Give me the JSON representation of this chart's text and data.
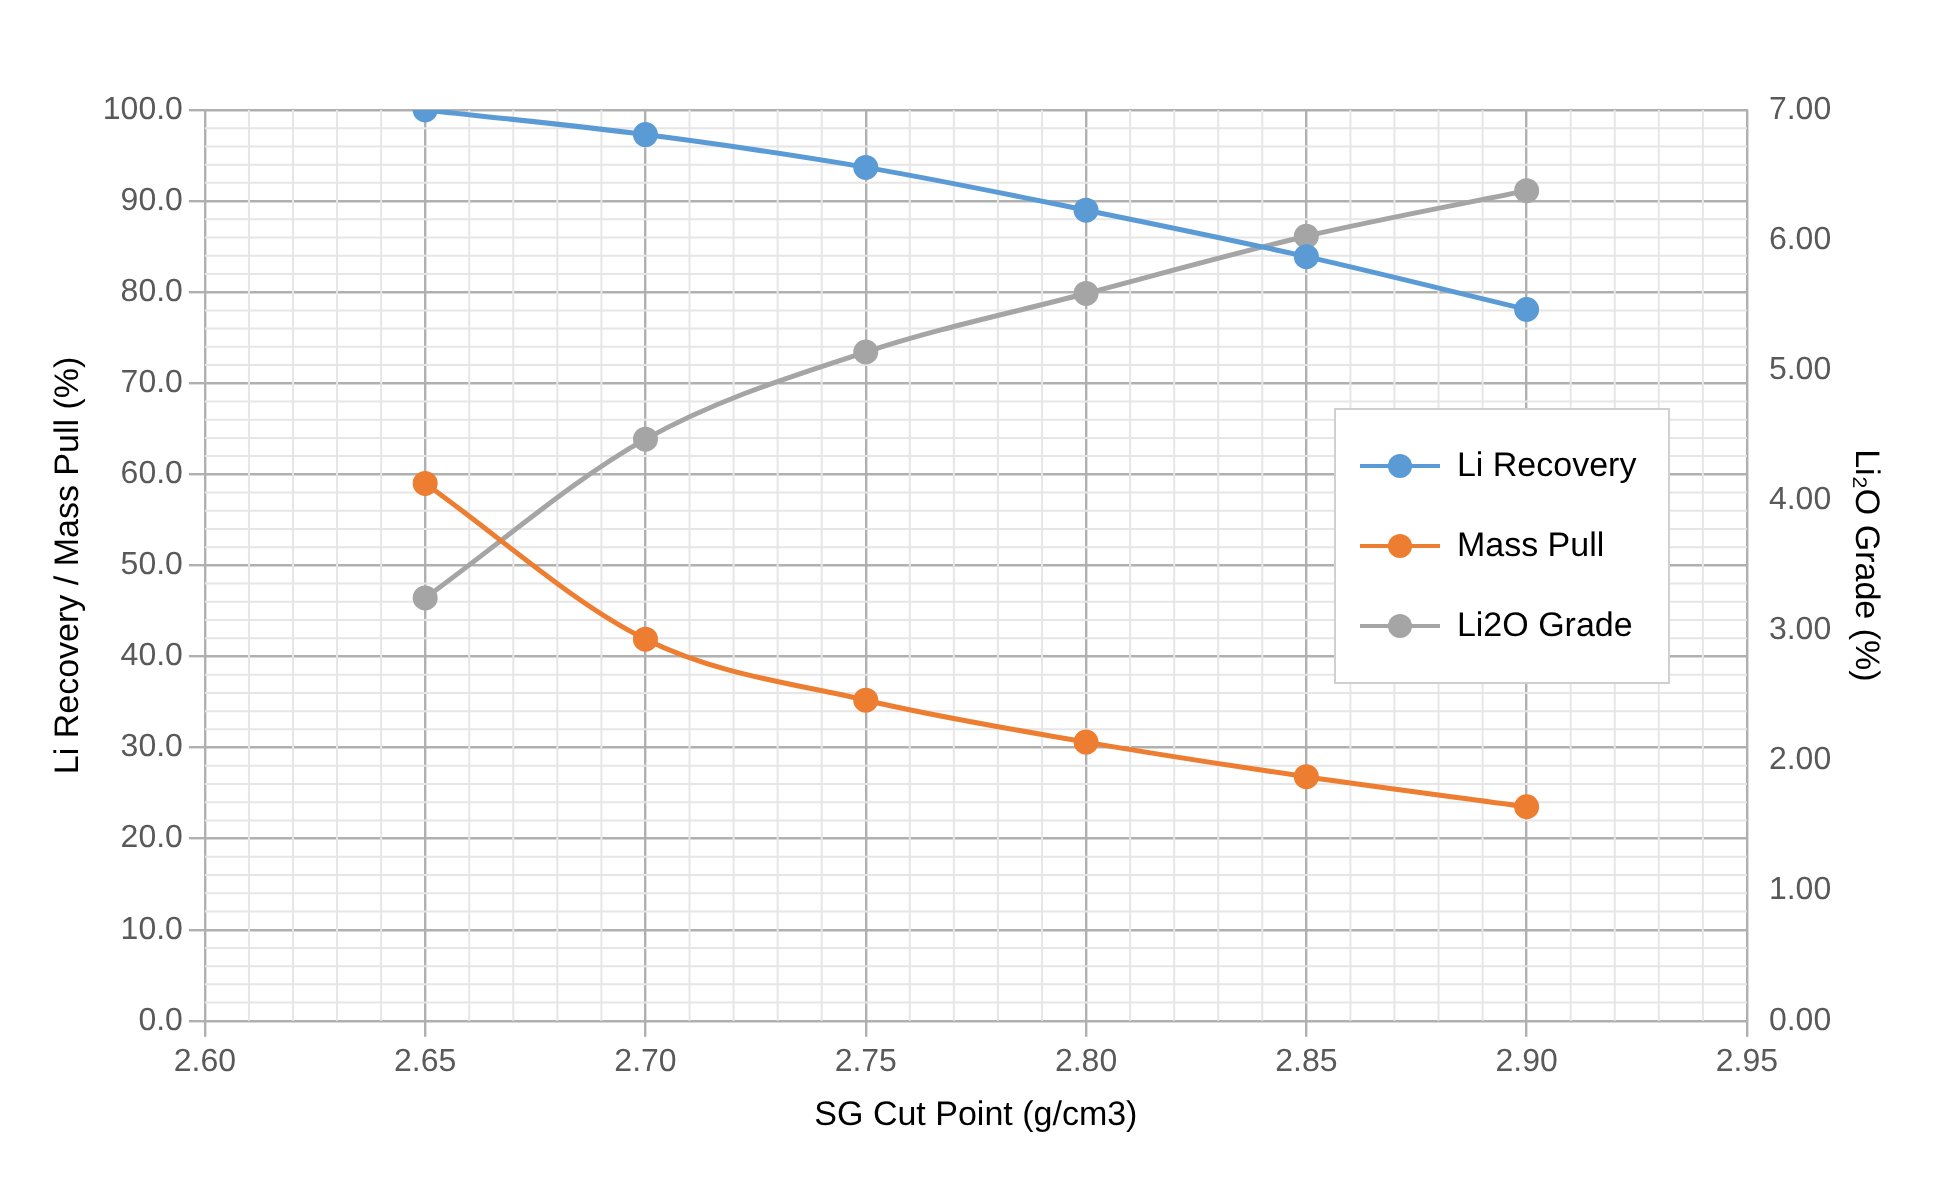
{
  "chart_data": {
    "type": "line",
    "xlabel": "SG Cut Point (g/cm3)",
    "ylabel": "Li Recovery / Mass Pull (%)",
    "y2label": "Li₂O Grade (%)",
    "x": [
      2.65,
      2.7,
      2.75,
      2.8,
      2.85,
      2.9
    ],
    "series": [
      {
        "name": "Li Recovery",
        "color": "#5b9bd5",
        "values": [
          100.0,
          97.3,
          93.7,
          89.0,
          83.9,
          78.1
        ]
      },
      {
        "name": "Mass Pull",
        "color": "#ed7d31",
        "values": [
          59.0,
          41.9,
          35.2,
          30.6,
          26.8,
          23.5
        ]
      },
      {
        "name": "Li2O Grade",
        "color": "#a5a5a5",
        "axis": "y2",
        "values": [
          3.25,
          4.47,
          5.14,
          5.59,
          6.03,
          6.38
        ]
      }
    ],
    "xlim": [
      2.6,
      2.95
    ],
    "xticks": [
      {
        "value": 2.6,
        "label": "2.60"
      },
      {
        "value": 2.65,
        "label": "2.65"
      },
      {
        "value": 2.7,
        "label": "2.70"
      },
      {
        "value": 2.75,
        "label": "2.75"
      },
      {
        "value": 2.8,
        "label": "2.80"
      },
      {
        "value": 2.85,
        "label": "2.85"
      },
      {
        "value": 2.9,
        "label": "2.90"
      },
      {
        "value": 2.95,
        "label": "2.95"
      }
    ],
    "ylim": [
      0,
      100
    ],
    "yticks": [
      {
        "value": 0,
        "label": "0.0"
      },
      {
        "value": 10,
        "label": "10.0"
      },
      {
        "value": 20,
        "label": "20.0"
      },
      {
        "value": 30,
        "label": "30.0"
      },
      {
        "value": 40,
        "label": "40.0"
      },
      {
        "value": 50,
        "label": "50.0"
      },
      {
        "value": 60,
        "label": "60.0"
      },
      {
        "value": 70,
        "label": "70.0"
      },
      {
        "value": 80,
        "label": "80.0"
      },
      {
        "value": 90,
        "label": "90.0"
      },
      {
        "value": 100,
        "label": "100.0"
      }
    ],
    "y2lim": [
      0,
      7
    ],
    "y2ticks": [
      {
        "value": 0,
        "label": "0.00"
      },
      {
        "value": 1,
        "label": "1.00"
      },
      {
        "value": 2,
        "label": "2.00"
      },
      {
        "value": 3,
        "label": "3.00"
      },
      {
        "value": 4,
        "label": "4.00"
      },
      {
        "value": 5,
        "label": "5.00"
      },
      {
        "value": 6,
        "label": "6.00"
      },
      {
        "value": 7,
        "label": "7.00"
      }
    ],
    "grid": true,
    "legend": "right",
    "marker": "circle",
    "line_style": "solid"
  }
}
